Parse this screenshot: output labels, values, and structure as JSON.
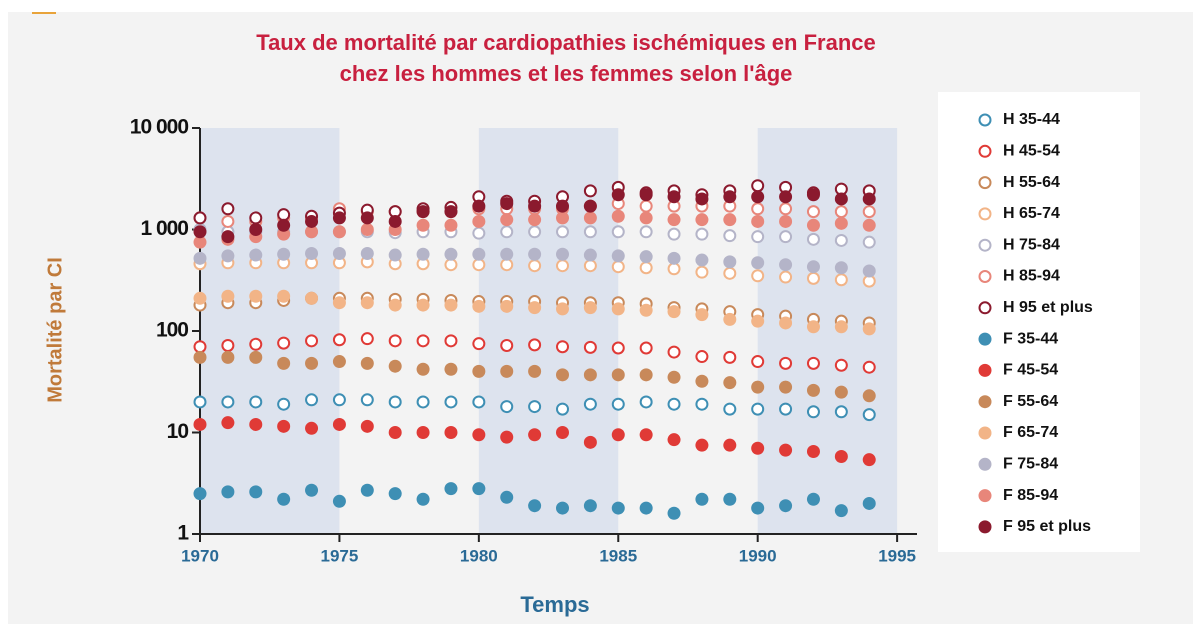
{
  "chart_data": {
    "type": "scatter",
    "title": [
      "Taux de mortalité par cardiopathies ischémiques en France",
      "chez les hommes et les femmes selon l'âge"
    ],
    "x_label": "Temps",
    "y_label": "Mortalité par CI",
    "log_y": true,
    "xlim": [
      1970,
      1996
    ],
    "xticks": [
      1970,
      1975,
      1980,
      1985,
      1990,
      1995
    ],
    "ylim": [
      1,
      10000
    ],
    "yticks": [
      1,
      10,
      100,
      {
        "value": 1000,
        "label": "1 000"
      },
      {
        "value": 10000,
        "label": "10 000"
      }
    ],
    "shaded_periods": [
      [
        1970,
        1975
      ],
      [
        1980,
        1985
      ],
      [
        1990,
        1995
      ]
    ],
    "legend": "right",
    "x": [
      1970,
      1971,
      1972,
      1973,
      1974,
      1975,
      1976,
      1977,
      1978,
      1979,
      1980,
      1981,
      1982,
      1983,
      1984,
      1985,
      1986,
      1987,
      1988,
      1989,
      1990,
      1991,
      1992,
      1993,
      1994
    ],
    "series": [
      {
        "name": "H 35-44",
        "color": "#3e8fb4",
        "marker": "open",
        "values": [
          20,
          20,
          20,
          19,
          21,
          21,
          21,
          20,
          20,
          20,
          20,
          18,
          18,
          17,
          19,
          19,
          20,
          19,
          19,
          17,
          17,
          17,
          16,
          16,
          15
        ]
      },
      {
        "name": "H 45-54",
        "color": "#e03a36",
        "marker": "open",
        "values": [
          70,
          72,
          74,
          76,
          80,
          82,
          84,
          80,
          80,
          80,
          75,
          72,
          73,
          70,
          69,
          68,
          68,
          62,
          56,
          55,
          50,
          48,
          48,
          46,
          44
        ]
      },
      {
        "name": "H 55-64",
        "color": "#c8895a",
        "marker": "open",
        "values": [
          180,
          190,
          190,
          200,
          210,
          210,
          210,
          205,
          205,
          200,
          195,
          195,
          195,
          190,
          190,
          190,
          185,
          170,
          165,
          155,
          145,
          140,
          130,
          125,
          120
        ]
      },
      {
        "name": "H 65-74",
        "color": "#f2b487",
        "marker": "open",
        "values": [
          460,
          470,
          470,
          470,
          470,
          470,
          480,
          460,
          460,
          450,
          450,
          450,
          440,
          440,
          440,
          430,
          420,
          410,
          380,
          370,
          350,
          340,
          330,
          320,
          310
        ]
      },
      {
        "name": "H 75-84",
        "color": "#b4b4c8",
        "marker": "open",
        "values": [
          1000,
          950,
          950,
          950,
          950,
          950,
          950,
          930,
          950,
          950,
          920,
          950,
          950,
          950,
          950,
          950,
          950,
          900,
          900,
          870,
          850,
          850,
          800,
          780,
          750
        ]
      },
      {
        "name": "H 85-94",
        "color": "#e8867a",
        "marker": "open",
        "values": [
          1300,
          1200,
          1200,
          1300,
          1300,
          1600,
          1500,
          1500,
          1500,
          1500,
          1600,
          1600,
          1600,
          1600,
          1700,
          1800,
          1700,
          1700,
          1700,
          1700,
          1600,
          1600,
          1500,
          1500,
          1500
        ]
      },
      {
        "name": "H 95 et plus",
        "color": "#8b1a2e",
        "marker": "open",
        "values": [
          1300,
          1600,
          1300,
          1400,
          1350,
          1450,
          1550,
          1500,
          1600,
          1650,
          2100,
          1900,
          1900,
          2100,
          2400,
          2600,
          2300,
          2400,
          2200,
          2400,
          2700,
          2600,
          2300,
          2500,
          2400
        ]
      },
      {
        "name": "F 35-44",
        "color": "#3e8fb4",
        "marker": "filled",
        "values": [
          2.5,
          2.6,
          2.6,
          2.2,
          2.7,
          2.1,
          2.7,
          2.5,
          2.2,
          2.8,
          2.8,
          2.3,
          1.9,
          1.8,
          1.9,
          1.8,
          1.8,
          1.6,
          2.2,
          2.2,
          1.8,
          1.9,
          2.2,
          1.7,
          2.0
        ]
      },
      {
        "name": "F 45-54",
        "color": "#e03a36",
        "marker": "filled",
        "values": [
          12,
          12.5,
          12,
          11.5,
          11,
          12,
          11.5,
          10,
          10,
          10,
          9.5,
          9,
          9.5,
          10,
          8,
          9.5,
          9.5,
          8.5,
          7.5,
          7.5,
          7,
          6.7,
          6.5,
          5.8,
          5.4
        ]
      },
      {
        "name": "F 55-64",
        "color": "#c8895a",
        "marker": "filled",
        "values": [
          55,
          55,
          55,
          48,
          48,
          50,
          48,
          45,
          42,
          42,
          40,
          40,
          40,
          37,
          37,
          37,
          37,
          35,
          32,
          31,
          28,
          28,
          26,
          25,
          23
        ]
      },
      {
        "name": "F 65-74",
        "color": "#f2b487",
        "marker": "filled",
        "values": [
          210,
          220,
          220,
          220,
          210,
          190,
          190,
          180,
          180,
          180,
          175,
          175,
          170,
          165,
          170,
          165,
          160,
          155,
          145,
          130,
          125,
          120,
          110,
          110,
          105
        ]
      },
      {
        "name": "F 75-84",
        "color": "#b4b4c8",
        "marker": "filled",
        "values": [
          520,
          550,
          560,
          570,
          580,
          580,
          580,
          560,
          570,
          570,
          570,
          570,
          570,
          570,
          560,
          550,
          540,
          520,
          500,
          480,
          470,
          450,
          430,
          420,
          390
        ]
      },
      {
        "name": "F 85-94",
        "color": "#e8867a",
        "marker": "filled",
        "values": [
          750,
          800,
          850,
          900,
          950,
          950,
          1000,
          1000,
          1100,
          1100,
          1200,
          1250,
          1250,
          1300,
          1300,
          1350,
          1300,
          1250,
          1250,
          1250,
          1200,
          1200,
          1100,
          1150,
          1100
        ]
      },
      {
        "name": "F 95 et plus",
        "color": "#8b1a2e",
        "marker": "filled",
        "values": [
          950,
          850,
          1000,
          1100,
          1200,
          1300,
          1300,
          1200,
          1500,
          1500,
          1700,
          1800,
          1700,
          1700,
          1700,
          2200,
          2200,
          2100,
          2000,
          2100,
          2100,
          2100,
          2200,
          2000,
          2000
        ]
      }
    ]
  }
}
